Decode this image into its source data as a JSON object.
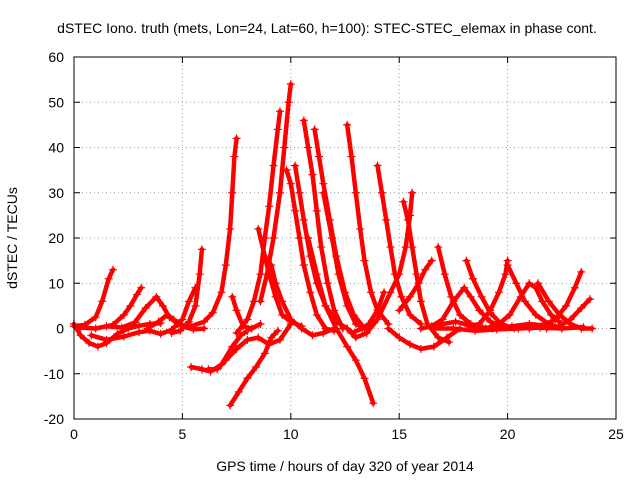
{
  "chart_data": {
    "type": "scatter",
    "title": "dSTEC Iono. truth (mets, Lon=24, Lat=60, h=100): STEC-STEC_elemax in phase cont.",
    "xlabel": "GPS time / hours of day 320 of year 2014",
    "ylabel": "dSTEC  / TECUs",
    "xlim": [
      0,
      25
    ],
    "ylim": [
      -20,
      60
    ],
    "xticks": [
      0,
      5,
      10,
      15,
      20,
      25
    ],
    "yticks": [
      -20,
      -10,
      0,
      10,
      20,
      30,
      40,
      50,
      60
    ],
    "grid": true,
    "marker": "+",
    "color": "#ff0000",
    "series": [
      {
        "values": [
          [
            0.0,
            1.0
          ],
          [
            0.3,
            -1.5
          ],
          [
            0.7,
            -3.2
          ],
          [
            1.1,
            -4.0
          ],
          [
            1.5,
            -3.2
          ],
          [
            2.0,
            -1.2
          ],
          [
            2.5,
            0.0
          ],
          [
            3.0,
            0.6
          ],
          [
            3.5,
            1.0
          ],
          [
            4.0,
            1.2
          ]
        ]
      },
      {
        "values": [
          [
            0.0,
            0.5
          ],
          [
            0.5,
            0.8
          ],
          [
            1.0,
            2.5
          ],
          [
            1.3,
            6.0
          ],
          [
            1.6,
            11.0
          ],
          [
            1.8,
            13.0
          ]
        ]
      },
      {
        "values": [
          [
            0.3,
            0.2
          ],
          [
            1.0,
            0.0
          ],
          [
            1.8,
            0.8
          ],
          [
            2.3,
            3.0
          ],
          [
            2.6,
            5.0
          ],
          [
            2.9,
            7.5
          ],
          [
            3.1,
            9.0
          ]
        ]
      },
      {
        "values": [
          [
            1.5,
            0.5
          ],
          [
            2.2,
            0.2
          ],
          [
            2.8,
            1.3
          ],
          [
            3.3,
            4.5
          ],
          [
            3.8,
            7.0
          ],
          [
            4.1,
            5.0
          ],
          [
            4.4,
            2.5
          ],
          [
            4.8,
            1.0
          ],
          [
            5.2,
            0.5
          ]
        ]
      },
      {
        "values": [
          [
            0.8,
            -1.5
          ],
          [
            1.5,
            -2.5
          ],
          [
            2.3,
            -1.8
          ],
          [
            3.0,
            -0.8
          ],
          [
            3.5,
            -0.5
          ],
          [
            4.0,
            -1.2
          ],
          [
            4.5,
            -0.3
          ],
          [
            5.0,
            2.0
          ],
          [
            5.3,
            6.0
          ],
          [
            5.6,
            9.0
          ]
        ]
      },
      {
        "values": [
          [
            3.4,
            0.0
          ],
          [
            3.9,
            1.5
          ],
          [
            4.3,
            3.0
          ],
          [
            4.6,
            2.0
          ],
          [
            5.0,
            0.5
          ],
          [
            5.5,
            -0.2
          ],
          [
            6.0,
            0.0
          ]
        ]
      },
      {
        "values": [
          [
            4.5,
            -1.0
          ],
          [
            4.9,
            -0.5
          ],
          [
            5.3,
            1.5
          ],
          [
            5.6,
            5.0
          ],
          [
            5.8,
            12.0
          ],
          [
            5.9,
            17.5
          ]
        ]
      },
      {
        "values": [
          [
            5.4,
            -8.5
          ],
          [
            5.9,
            -9.0
          ],
          [
            6.3,
            -9.5
          ],
          [
            6.8,
            -8.0
          ],
          [
            7.3,
            -4.0
          ],
          [
            7.7,
            -1.5
          ],
          [
            8.0,
            -0.5
          ]
        ]
      },
      {
        "values": [
          [
            5.4,
            0.5
          ],
          [
            6.0,
            1.5
          ],
          [
            6.4,
            3.5
          ],
          [
            6.8,
            8.0
          ],
          [
            7.0,
            14.0
          ],
          [
            7.2,
            22.0
          ],
          [
            7.3,
            30.0
          ],
          [
            7.4,
            38.0
          ],
          [
            7.5,
            42.0
          ]
        ]
      },
      {
        "values": [
          [
            7.2,
            -17.0
          ],
          [
            7.6,
            -14.0
          ],
          [
            8.0,
            -11.0
          ],
          [
            8.4,
            -8.5
          ],
          [
            8.8,
            -5.5
          ],
          [
            9.1,
            -2.0
          ],
          [
            9.4,
            -0.5
          ]
        ]
      },
      {
        "values": [
          [
            7.3,
            7.0
          ],
          [
            7.5,
            4.0
          ],
          [
            7.8,
            0.5
          ],
          [
            8.2,
            0.0
          ],
          [
            8.6,
            1.0
          ]
        ]
      },
      {
        "values": [
          [
            6.2,
            -9.0
          ],
          [
            6.6,
            -9.0
          ],
          [
            7.0,
            -7.0
          ],
          [
            7.5,
            -4.5
          ],
          [
            8.0,
            -2.5
          ],
          [
            8.5,
            -2.0
          ],
          [
            9.0,
            -3.5
          ],
          [
            9.5,
            -2.5
          ],
          [
            10.0,
            1.0
          ]
        ]
      },
      {
        "values": [
          [
            7.5,
            -1.0
          ],
          [
            8.0,
            2.0
          ],
          [
            8.3,
            6.0
          ],
          [
            8.6,
            12.0
          ],
          [
            8.8,
            20.0
          ],
          [
            9.0,
            27.0
          ],
          [
            9.2,
            36.0
          ],
          [
            9.4,
            44.0
          ],
          [
            9.5,
            48.0
          ]
        ]
      },
      {
        "values": [
          [
            8.5,
            22.0
          ],
          [
            8.8,
            16.0
          ],
          [
            9.0,
            12.0
          ],
          [
            9.3,
            7.0
          ],
          [
            9.6,
            3.0
          ],
          [
            10.0,
            1.5
          ],
          [
            10.5,
            0.5
          ]
        ]
      },
      {
        "values": [
          [
            8.6,
            6.0
          ],
          [
            8.9,
            12.0
          ],
          [
            9.2,
            20.0
          ],
          [
            9.5,
            30.0
          ],
          [
            9.7,
            40.0
          ],
          [
            9.9,
            50.0
          ],
          [
            10.0,
            54.0
          ]
        ]
      },
      {
        "values": [
          [
            9.1,
            14.0
          ],
          [
            9.3,
            10.0
          ],
          [
            9.6,
            6.0
          ],
          [
            10.0,
            2.0
          ],
          [
            10.5,
            0.0
          ],
          [
            11.0,
            -1.5
          ],
          [
            11.5,
            -1.0
          ],
          [
            12.0,
            0.0
          ]
        ]
      },
      {
        "values": [
          [
            9.8,
            35.0
          ],
          [
            10.0,
            32.0
          ],
          [
            10.2,
            26.0
          ],
          [
            10.4,
            20.0
          ],
          [
            10.6,
            14.0
          ],
          [
            10.9,
            8.0
          ],
          [
            11.2,
            3.0
          ],
          [
            11.6,
            0.0
          ],
          [
            12.0,
            -0.5
          ]
        ]
      },
      {
        "values": [
          [
            10.2,
            36.0
          ],
          [
            10.4,
            30.0
          ],
          [
            10.6,
            24.0
          ],
          [
            10.9,
            16.0
          ],
          [
            11.2,
            10.0
          ],
          [
            11.6,
            5.0
          ],
          [
            12.1,
            1.5
          ],
          [
            12.6,
            0.0
          ]
        ]
      },
      {
        "values": [
          [
            10.6,
            46.0
          ],
          [
            10.8,
            40.0
          ],
          [
            11.0,
            34.0
          ],
          [
            11.2,
            26.0
          ],
          [
            11.4,
            18.0
          ],
          [
            11.7,
            10.0
          ],
          [
            12.0,
            4.0
          ],
          [
            12.4,
            0.0
          ]
        ]
      },
      {
        "values": [
          [
            11.1,
            44.0
          ],
          [
            11.3,
            38.0
          ],
          [
            11.5,
            32.0
          ],
          [
            11.8,
            24.0
          ],
          [
            12.1,
            16.0
          ],
          [
            12.5,
            8.0
          ],
          [
            12.9,
            3.0
          ],
          [
            13.4,
            0.0
          ]
        ]
      },
      {
        "values": [
          [
            10.8,
            20.0
          ],
          [
            11.2,
            12.0
          ],
          [
            11.6,
            5.0
          ],
          [
            12.1,
            0.0
          ],
          [
            12.6,
            -4.0
          ],
          [
            13.0,
            -7.0
          ],
          [
            13.4,
            -11.0
          ],
          [
            13.8,
            -16.5
          ]
        ]
      },
      {
        "values": [
          [
            11.5,
            30.0
          ],
          [
            11.9,
            20.0
          ],
          [
            12.2,
            12.0
          ],
          [
            12.6,
            5.0
          ],
          [
            13.0,
            1.0
          ],
          [
            13.5,
            0.0
          ]
        ]
      },
      {
        "values": [
          [
            12.6,
            45.0
          ],
          [
            12.8,
            38.0
          ],
          [
            13.0,
            30.0
          ],
          [
            13.2,
            22.0
          ],
          [
            13.4,
            15.0
          ],
          [
            13.7,
            8.0
          ],
          [
            14.0,
            4.0
          ],
          [
            14.5,
            1.0
          ]
        ]
      },
      {
        "values": [
          [
            12.8,
            -1.0
          ],
          [
            13.3,
            0.0
          ],
          [
            13.6,
            1.0
          ],
          [
            14.0,
            4.0
          ],
          [
            14.3,
            8.0
          ]
        ]
      },
      {
        "values": [
          [
            14.0,
            36.0
          ],
          [
            14.2,
            30.0
          ],
          [
            14.4,
            24.0
          ],
          [
            14.6,
            18.0
          ],
          [
            14.8,
            12.0
          ],
          [
            15.1,
            7.0
          ],
          [
            15.5,
            3.0
          ],
          [
            16.0,
            1.0
          ]
        ]
      },
      {
        "values": [
          [
            12.6,
            0.0
          ],
          [
            13.0,
            -2.0
          ],
          [
            13.5,
            -1.0
          ],
          [
            14.0,
            2.0
          ],
          [
            14.6,
            8.0
          ],
          [
            15.0,
            12.0
          ],
          [
            15.3,
            18.0
          ],
          [
            15.5,
            25.0
          ],
          [
            15.6,
            30.0
          ]
        ]
      },
      {
        "values": [
          [
            15.2,
            28.0
          ],
          [
            15.4,
            24.0
          ],
          [
            15.6,
            18.0
          ],
          [
            15.8,
            12.0
          ],
          [
            16.0,
            6.0
          ],
          [
            16.3,
            1.0
          ],
          [
            16.8,
            -2.0
          ],
          [
            17.3,
            -3.0
          ]
        ]
      },
      {
        "values": [
          [
            14.5,
            0.0
          ],
          [
            15.0,
            -2.0
          ],
          [
            15.5,
            -3.5
          ],
          [
            16.0,
            -4.5
          ],
          [
            16.6,
            -4.0
          ],
          [
            17.2,
            -2.0
          ],
          [
            17.8,
            0.0
          ]
        ]
      },
      {
        "values": [
          [
            15.0,
            4.0
          ],
          [
            15.5,
            7.0
          ],
          [
            15.9,
            10.0
          ],
          [
            16.2,
            13.0
          ],
          [
            16.5,
            15.0
          ]
        ]
      },
      {
        "values": [
          [
            16.8,
            18.0
          ],
          [
            17.1,
            12.0
          ],
          [
            17.4,
            7.0
          ],
          [
            17.8,
            3.0
          ],
          [
            18.3,
            1.0
          ],
          [
            18.8,
            0.0
          ]
        ]
      },
      {
        "values": [
          [
            16.0,
            0.0
          ],
          [
            16.5,
            0.5
          ],
          [
            17.0,
            2.0
          ],
          [
            17.5,
            6.0
          ],
          [
            18.0,
            9.0
          ],
          [
            18.3,
            7.0
          ],
          [
            18.7,
            4.0
          ],
          [
            19.2,
            1.5
          ],
          [
            19.7,
            0.5
          ]
        ]
      },
      {
        "values": [
          [
            18.1,
            15.0
          ],
          [
            18.4,
            11.0
          ],
          [
            18.8,
            7.0
          ],
          [
            19.2,
            3.5
          ],
          [
            19.7,
            1.0
          ],
          [
            20.3,
            0.0
          ]
        ]
      },
      {
        "values": [
          [
            18.2,
            0.5
          ],
          [
            18.7,
            1.0
          ],
          [
            19.2,
            4.0
          ],
          [
            19.6,
            8.0
          ],
          [
            19.9,
            12.0
          ],
          [
            20.0,
            15.0
          ]
        ]
      },
      {
        "values": [
          [
            19.0,
            0.0
          ],
          [
            19.6,
            1.0
          ],
          [
            20.1,
            3.0
          ],
          [
            20.6,
            7.0
          ],
          [
            21.0,
            10.0
          ],
          [
            21.3,
            9.0
          ],
          [
            21.6,
            6.0
          ],
          [
            22.0,
            3.0
          ],
          [
            22.5,
            1.0
          ]
        ]
      },
      {
        "values": [
          [
            20.0,
            14.0
          ],
          [
            20.4,
            10.0
          ],
          [
            20.8,
            6.0
          ],
          [
            21.3,
            3.0
          ],
          [
            21.9,
            1.0
          ],
          [
            22.5,
            0.0
          ]
        ]
      },
      {
        "values": [
          [
            21.4,
            10.0
          ],
          [
            21.9,
            6.0
          ],
          [
            22.4,
            3.0
          ],
          [
            22.9,
            1.0
          ],
          [
            23.4,
            0.0
          ],
          [
            23.9,
            0.0
          ]
        ]
      },
      {
        "values": [
          [
            21.0,
            0.0
          ],
          [
            21.6,
            0.5
          ],
          [
            22.2,
            2.0
          ],
          [
            22.7,
            5.0
          ],
          [
            23.1,
            9.0
          ],
          [
            23.4,
            12.5
          ]
        ]
      },
      {
        "values": [
          [
            21.8,
            0.0
          ],
          [
            22.4,
            0.5
          ],
          [
            22.9,
            2.0
          ],
          [
            23.4,
            4.5
          ],
          [
            23.8,
            6.5
          ]
        ]
      },
      {
        "values": [
          [
            16.5,
            0.0
          ],
          [
            17.5,
            0.0
          ],
          [
            18.5,
            -0.5
          ],
          [
            19.5,
            -0.2
          ],
          [
            20.5,
            0.0
          ],
          [
            21.5,
            0.2
          ],
          [
            22.5,
            0.0
          ],
          [
            23.5,
            0.3
          ]
        ]
      },
      {
        "values": [
          [
            16.8,
            0.8
          ],
          [
            17.6,
            1.5
          ],
          [
            18.4,
            0.5
          ],
          [
            19.3,
            0.0
          ],
          [
            20.2,
            0.5
          ],
          [
            21.0,
            1.0
          ],
          [
            22.0,
            0.5
          ]
        ]
      }
    ]
  }
}
